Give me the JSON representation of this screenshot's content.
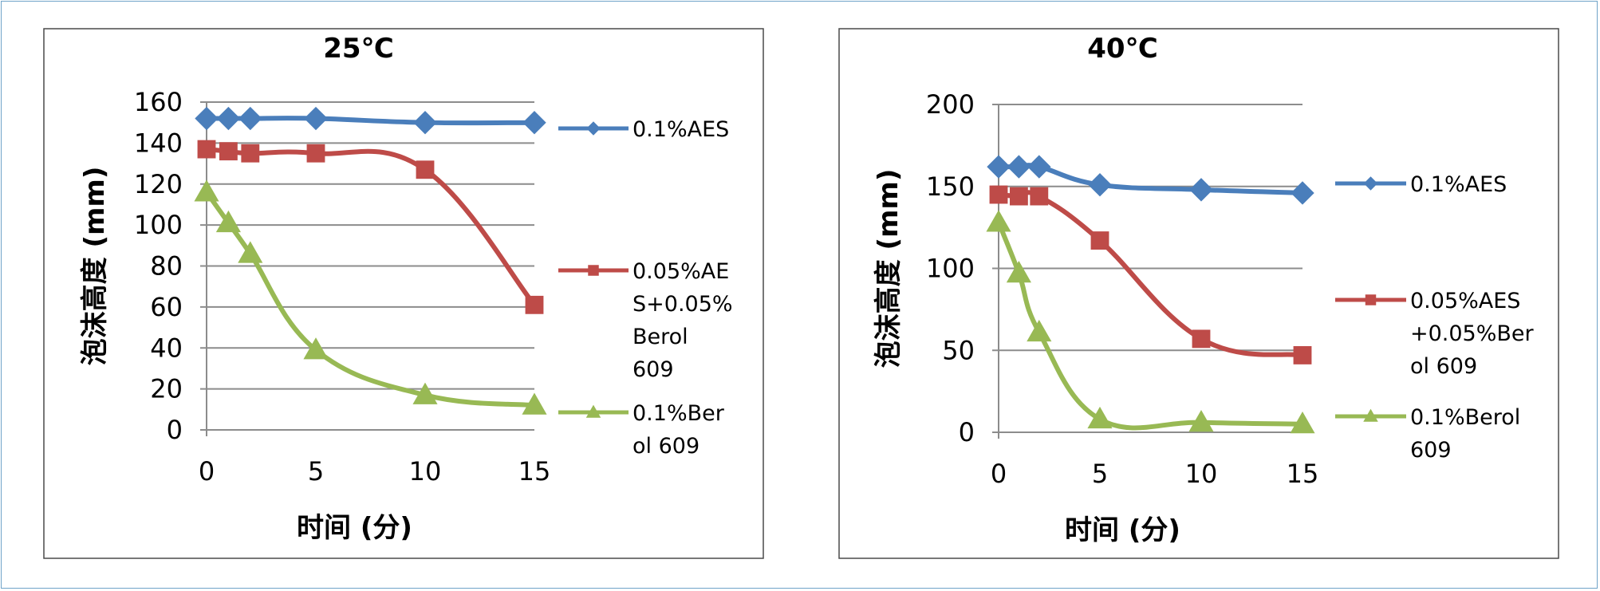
{
  "chart_data": [
    {
      "type": "line",
      "title": "25℃",
      "xlabel": "时间 (分)",
      "ylabel": "泡沫高度 (mm)",
      "xlim": [
        0,
        15
      ],
      "ylim": [
        0,
        160
      ],
      "xticks": [
        0,
        5,
        10,
        15
      ],
      "yticks": [
        0,
        20,
        40,
        60,
        80,
        100,
        120,
        140,
        160
      ],
      "grid": true,
      "legend": "right",
      "series": [
        {
          "name": "0.1%AES",
          "legend_lines": [
            "0.1%AES"
          ],
          "color": "#4a7ebb",
          "marker": "diamond",
          "x": [
            0,
            1,
            2,
            5,
            10,
            15
          ],
          "y": [
            152,
            152,
            152,
            152,
            150,
            150
          ]
        },
        {
          "name": "0.05%AES+0.05%Berol 609",
          "legend_lines": [
            "0.05%AE",
            "S+0.05%",
            "Berol",
            "609"
          ],
          "color": "#be4b48",
          "marker": "square",
          "x": [
            0,
            1,
            2,
            5,
            10,
            15
          ],
          "y": [
            137,
            136,
            135,
            135,
            127,
            61
          ]
        },
        {
          "name": "0.1%Berol 609",
          "legend_lines": [
            "0.1%Ber",
            "ol 609"
          ],
          "color": "#98b954",
          "marker": "triangle",
          "x": [
            0,
            1,
            2,
            5,
            10,
            15
          ],
          "y": [
            116,
            101,
            86,
            39,
            17,
            12
          ]
        }
      ]
    },
    {
      "type": "line",
      "title": "40℃",
      "xlabel": "时间 (分)",
      "ylabel": "泡沫高度 (mm)",
      "xlim": [
        0,
        15
      ],
      "ylim": [
        0,
        200
      ],
      "xticks": [
        0,
        5,
        10,
        15
      ],
      "yticks": [
        0,
        50,
        100,
        150,
        200
      ],
      "grid": true,
      "legend": "right",
      "series": [
        {
          "name": "0.1%AES",
          "legend_lines": [
            "0.1%AES"
          ],
          "color": "#4a7ebb",
          "marker": "diamond",
          "x": [
            0,
            1,
            2,
            5,
            10,
            15
          ],
          "y": [
            162,
            162,
            162,
            151,
            148,
            146
          ]
        },
        {
          "name": "0.05%AES+0.05%Berol 609",
          "legend_lines": [
            "0.05%AES",
            "+0.05%Ber",
            "ol 609"
          ],
          "color": "#be4b48",
          "marker": "square",
          "x": [
            0,
            1,
            2,
            5,
            10,
            15
          ],
          "y": [
            145,
            144,
            144,
            117,
            57,
            47
          ]
        },
        {
          "name": "0.1%Berol 609",
          "legend_lines": [
            "0.1%Berol",
            "609"
          ],
          "color": "#98b954",
          "marker": "triangle",
          "x": [
            0,
            1,
            2,
            5,
            10,
            15
          ],
          "y": [
            128,
            97,
            61,
            8,
            6,
            5
          ]
        }
      ]
    }
  ]
}
